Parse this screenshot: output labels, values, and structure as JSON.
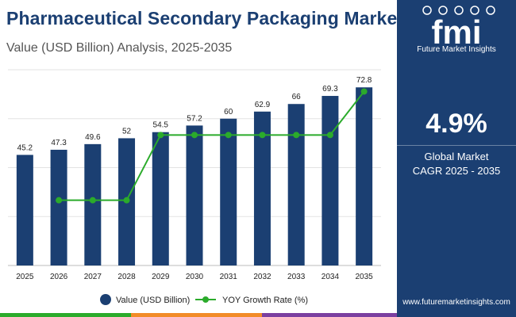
{
  "header": {
    "title": "Pharmaceutical Secondary Packaging Market",
    "subtitle": "Value (USD Billion) Analysis, 2025-2035"
  },
  "sidebar": {
    "brand_name": "Future Market Insights",
    "logo_text": "fmi",
    "cagr_value": "4.9%",
    "cagr_label_line1": "Global Market",
    "cagr_label_line2": "CAGR 2025 - 2035",
    "website": "www.futuremarketinsights.com"
  },
  "colors": {
    "bar": "#1b3f72",
    "line": "#2bab2b",
    "panel": "#1b3f72",
    "stripe_green": "#2bab2b",
    "stripe_orange": "#f28c28",
    "stripe_purple": "#7b3fa0",
    "stripe_blue": "#1b3f72"
  },
  "chart_data": {
    "type": "bar",
    "title": "Pharmaceutical Secondary Packaging Market",
    "subtitle": "Value (USD Billion) Analysis, 2025-2035",
    "categories": [
      "2025",
      "2026",
      "2027",
      "2028",
      "2029",
      "2030",
      "2031",
      "2032",
      "2033",
      "2034",
      "2035"
    ],
    "series": [
      {
        "name": "Value (USD Billion)",
        "type": "bar",
        "values": [
          45.2,
          47.3,
          49.6,
          52,
          54.5,
          57.2,
          60,
          62.9,
          66,
          69.3,
          72.8
        ],
        "labels": [
          "45.2",
          "47.3",
          "49.6",
          "52",
          "54.5",
          "57.2",
          "60",
          "62.9",
          "66",
          "69.3",
          "72.8"
        ]
      },
      {
        "name": "YOY Growth Rate (%)",
        "type": "line",
        "values": [
          null,
          4.6,
          4.6,
          4.6,
          4.9,
          4.9,
          4.9,
          4.9,
          4.9,
          4.9,
          5.1
        ]
      }
    ],
    "ylim": [
      0,
      80
    ],
    "line_ylim": [
      4.3,
      5.2
    ],
    "grid": true,
    "legend": "bottom"
  }
}
